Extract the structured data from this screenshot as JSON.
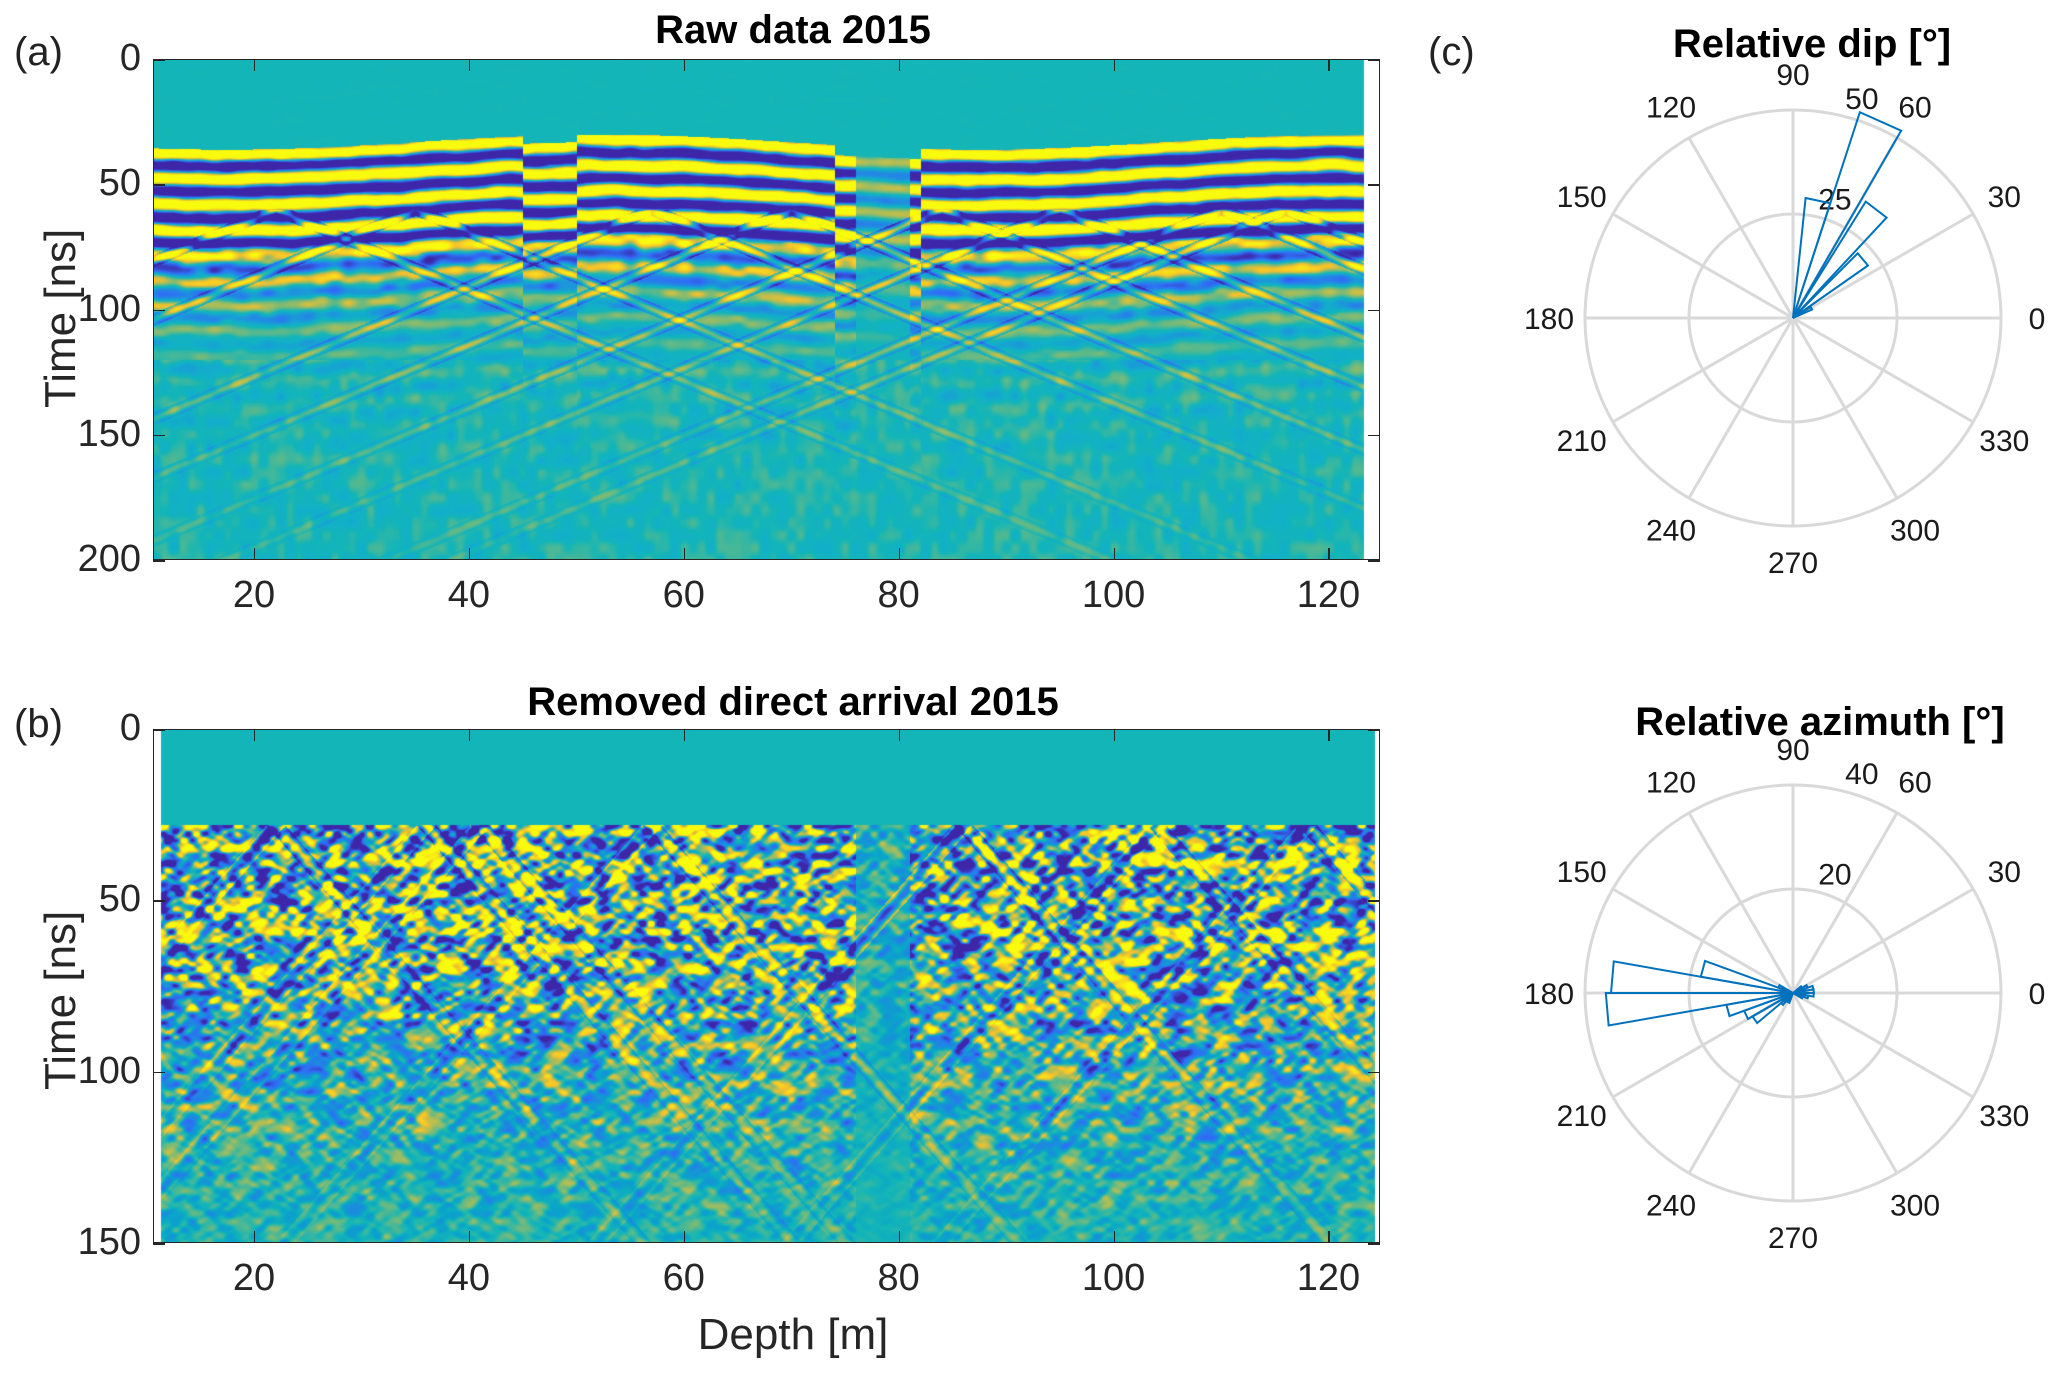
{
  "figure": {
    "panel_labels": {
      "a": "(a)",
      "b": "(b)",
      "c": "(c)"
    }
  },
  "chart_data": [
    {
      "id": "raw",
      "type": "heatmap",
      "title": "Raw data 2015",
      "xlabel": "",
      "ylabel": "Time [ns]",
      "xlim": [
        10.6,
        124.8
      ],
      "ylim": [
        0,
        200
      ],
      "y_reversed": true,
      "x_ticks": [
        20,
        40,
        60,
        80,
        100,
        120
      ],
      "y_ticks": [
        0,
        50,
        100,
        150,
        200
      ],
      "data_x_range": [
        10.6,
        123.3
      ],
      "colormap": [
        "#3e26a8",
        "#2f6ef6",
        "#11b0c9",
        "#13b5b8",
        "#f5c12b",
        "#f9fb0e"
      ],
      "description": "GPR radargram; strong horizontal yellow/blue bands between ~32 and ~75 ns (direct arrival), diffraction hyperbolae below, signal gap near 77-80 m"
    },
    {
      "id": "removed",
      "type": "heatmap",
      "title": "Removed direct arrival 2015",
      "xlabel": "Depth [m]",
      "ylabel": "Time [ns]",
      "xlim": [
        10.6,
        124.8
      ],
      "ylim": [
        0,
        150
      ],
      "y_reversed": true,
      "x_ticks": [
        20,
        40,
        60,
        80,
        100,
        120
      ],
      "y_ticks": [
        0,
        50,
        100,
        150
      ],
      "data_x_range": [
        11.3,
        124.3
      ],
      "colormap": [
        "#3e26a8",
        "#2f6ef6",
        "#0aa5c9",
        "#13b5b8",
        "#f5c12b",
        "#f9fb0e"
      ],
      "description": "Radargram after direct arrival removal; reflections start ~28 ns, steep dipping events and diffractions, quiet zone near 77-80 m"
    },
    {
      "id": "dip",
      "type": "polar-histogram",
      "title": "Relative dip [°]",
      "theta_ticks": [
        0,
        30,
        60,
        90,
        120,
        150,
        180,
        210,
        240,
        270,
        300,
        330
      ],
      "r_ticks": [
        25,
        50
      ],
      "rlim": [
        0,
        50
      ],
      "r_tick_angle_deg": 75,
      "bins": [
        {
          "from": 24,
          "to": 32,
          "value": 5
        },
        {
          "from": 35,
          "to": 45,
          "value": 22
        },
        {
          "from": 47,
          "to": 58,
          "value": 33
        },
        {
          "from": 60,
          "to": 72,
          "value": 52
        },
        {
          "from": 72,
          "to": 84,
          "value": 29
        }
      ]
    },
    {
      "id": "azimuth",
      "type": "polar-histogram",
      "title": "Relative azimuth [°]",
      "theta_ticks": [
        0,
        30,
        60,
        90,
        120,
        150,
        180,
        210,
        240,
        270,
        300,
        330
      ],
      "r_ticks": [
        20,
        40
      ],
      "rlim": [
        0,
        40
      ],
      "r_tick_angle_deg": 75,
      "bins": [
        {
          "from": 0,
          "to": 10,
          "value": 4
        },
        {
          "from": 10,
          "to": 20,
          "value": 4
        },
        {
          "from": 20,
          "to": 30,
          "value": 3
        },
        {
          "from": 30,
          "to": 40,
          "value": 2
        },
        {
          "from": 150,
          "to": 160,
          "value": 3
        },
        {
          "from": 160,
          "to": 170,
          "value": 18
        },
        {
          "from": 170,
          "to": 180,
          "value": 35
        },
        {
          "from": 180,
          "to": 190,
          "value": 36
        },
        {
          "from": 190,
          "to": 200,
          "value": 13
        },
        {
          "from": 200,
          "to": 210,
          "value": 10
        },
        {
          "from": 210,
          "to": 220,
          "value": 9
        },
        {
          "from": 220,
          "to": 230,
          "value": 3
        },
        {
          "from": 240,
          "to": 250,
          "value": 2
        },
        {
          "from": 330,
          "to": 340,
          "value": 2
        },
        {
          "from": 340,
          "to": 350,
          "value": 3
        },
        {
          "from": 350,
          "to": 360,
          "value": 4
        }
      ]
    }
  ],
  "colors": {
    "rose_line": "#0072bd",
    "rose_grid": "#d9d9d9",
    "axes": "#262626"
  }
}
